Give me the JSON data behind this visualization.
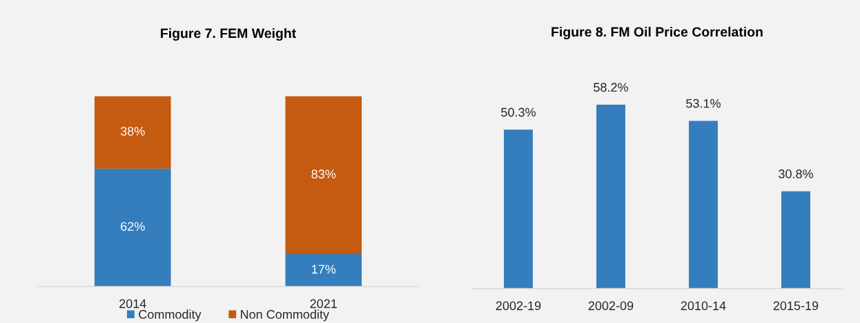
{
  "chart_data": [
    {
      "type": "bar",
      "title": "Figure 7. FEM Weight",
      "categories": [
        "2014",
        "2021"
      ],
      "stacked": true,
      "tick_labels": "x",
      "legend": "bottom",
      "series": [
        {
          "name": "Commodity",
          "color": "#357ebd",
          "values": [
            62,
            17
          ],
          "value_labels": [
            "62%",
            "17%"
          ]
        },
        {
          "name": "Non Commodity",
          "color": "#c55a11",
          "values": [
            38,
            83
          ],
          "value_labels": [
            "38%",
            "83%"
          ]
        }
      ]
    },
    {
      "type": "bar",
      "title": "Figure 8. FM Oil Price Correlation",
      "categories": [
        "2002-19",
        "2002-09",
        "2010-14",
        "2015-19"
      ],
      "tick_labels": "x",
      "color": "#357ebd",
      "values": [
        50.3,
        58.2,
        53.1,
        30.8
      ],
      "value_labels": [
        "50.3%",
        "58.2%",
        "53.1%",
        "30.8%"
      ]
    }
  ]
}
